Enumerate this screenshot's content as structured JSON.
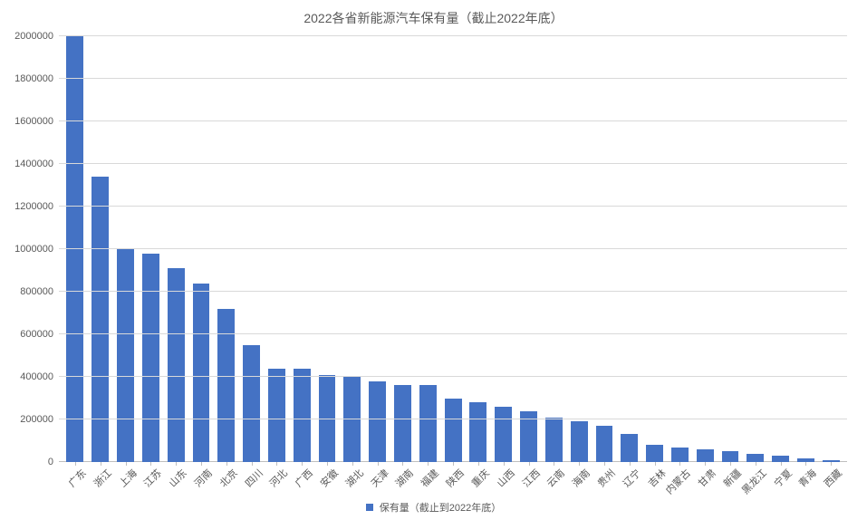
{
  "chart": {
    "type": "bar",
    "title": "2022各省新能源汽车保有量（截止2022年底）",
    "title_fontsize": 14,
    "title_color": "#595959",
    "background_color": "#ffffff",
    "grid_color": "#d9d9d9",
    "axis_color": "#bfbfbf",
    "label_color": "#595959",
    "label_fontsize": 11,
    "bar_color": "#4472c4",
    "bar_width_ratio": 0.68,
    "ylim": [
      0,
      2000000
    ],
    "ytick_step": 200000,
    "yticks": [
      0,
      200000,
      400000,
      600000,
      800000,
      1000000,
      1200000,
      1400000,
      1600000,
      1800000,
      2000000
    ],
    "xlabel_rotation": -45,
    "categories": [
      "广东",
      "浙江",
      "上海",
      "江苏",
      "山东",
      "河南",
      "北京",
      "四川",
      "河北",
      "广西",
      "安徽",
      "湖北",
      "天津",
      "湖南",
      "福建",
      "陕西",
      "重庆",
      "山西",
      "江西",
      "云南",
      "海南",
      "贵州",
      "辽宁",
      "吉林",
      "内蒙古",
      "甘肃",
      "新疆",
      "黑龙江",
      "宁夏",
      "青海",
      "西藏"
    ],
    "values": [
      2000000,
      1340000,
      1000000,
      980000,
      910000,
      840000,
      720000,
      550000,
      440000,
      440000,
      410000,
      400000,
      380000,
      360000,
      360000,
      300000,
      280000,
      260000,
      240000,
      210000,
      190000,
      170000,
      130000,
      80000,
      70000,
      60000,
      50000,
      40000,
      30000,
      15000,
      8000
    ],
    "legend": {
      "label": "保有量（截止到2022年底）",
      "swatch_color": "#4472c4",
      "position": "bottom"
    }
  }
}
